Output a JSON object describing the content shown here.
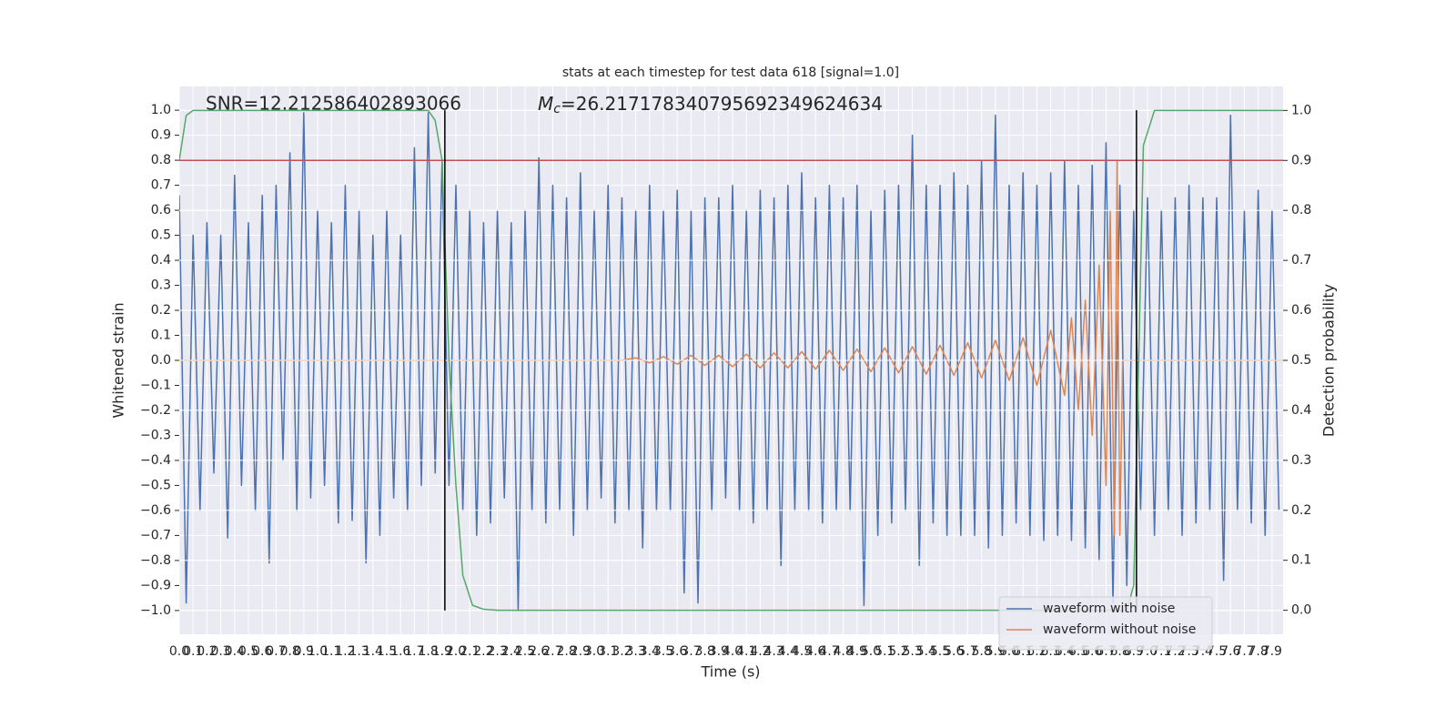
{
  "chart_data": {
    "type": "line",
    "title": "stats at each timestep for test data 618 [signal=1.0]",
    "xlabel": "Time (s)",
    "ylabel": "Whitened strain",
    "y2label": "Detection probability",
    "annotations": {
      "snr": "SNR=12.212586402893066",
      "mc_symbol": "M",
      "mc_sub": "c",
      "mc_value": "=26.217178340795692349624634"
    },
    "xlim": [
      0,
      7.98
    ],
    "ylim": [
      -1.095,
      1.095
    ],
    "y2lim": [
      -0.048,
      1.048
    ],
    "grid": true,
    "legend": "lower right",
    "xticks": [
      {
        "value": 0,
        "label": "0.0"
      },
      0.1,
      0.2,
      0.3,
      0.4,
      0.5,
      0.6,
      0.7,
      0.8,
      0.9,
      {
        "value": 1,
        "label": "1.0"
      },
      1.1,
      1.2,
      1.3,
      1.4,
      1.5,
      1.6,
      1.7,
      1.8,
      1.9,
      {
        "value": 2,
        "label": "2.0"
      },
      2.1,
      2.2,
      2.3,
      2.4,
      2.5,
      2.6,
      2.7,
      2.8,
      2.9,
      {
        "value": 3,
        "label": "3.0"
      },
      3.1,
      3.2,
      3.3,
      3.4,
      3.5,
      3.6,
      3.7,
      3.8,
      3.9,
      {
        "value": 4,
        "label": "4.0"
      },
      4.1,
      4.2,
      4.3,
      4.4,
      4.5,
      4.6,
      4.7,
      4.8,
      4.9,
      {
        "value": 5,
        "label": "5.0"
      },
      5.1,
      5.2,
      5.3,
      5.4,
      5.5,
      5.6,
      5.7,
      5.8,
      5.9,
      {
        "value": 6,
        "label": "6.0"
      },
      6.1,
      6.2,
      6.3,
      6.4,
      6.5,
      6.6,
      6.7,
      6.8,
      6.9,
      {
        "value": 7,
        "label": "7.0"
      },
      7.1,
      7.2,
      7.3,
      7.4,
      7.5,
      7.6,
      7.7,
      7.8,
      7.9
    ],
    "yticks": [
      {
        "value": -1,
        "label": "−1.0"
      },
      {
        "value": -0.9,
        "label": "−0.9"
      },
      {
        "value": -0.8,
        "label": "−0.8"
      },
      {
        "value": -0.7,
        "label": "−0.7"
      },
      {
        "value": -0.6,
        "label": "−0.6"
      },
      {
        "value": -0.5,
        "label": "−0.5"
      },
      {
        "value": -0.4,
        "label": "−0.4"
      },
      {
        "value": -0.3,
        "label": "−0.3"
      },
      {
        "value": -0.2,
        "label": "−0.2"
      },
      {
        "value": -0.1,
        "label": "−0.1"
      },
      {
        "value": 0,
        "label": "0.0"
      },
      0.1,
      0.2,
      0.3,
      0.4,
      0.5,
      0.6,
      0.7,
      0.8,
      0.9,
      {
        "value": 1,
        "label": "1.0"
      }
    ],
    "y2ticks": [
      {
        "value": 0,
        "label": "0.0"
      },
      0.1,
      0.2,
      0.3,
      0.4,
      0.5,
      0.6,
      0.7,
      0.8,
      0.9,
      {
        "value": 1,
        "label": "1.0"
      }
    ],
    "series": [
      {
        "name": "waveform with noise",
        "color": "#4c72b0",
        "x": [
          0,
          0.05,
          0.1,
          0.15,
          0.2,
          0.25,
          0.3,
          0.35,
          0.4,
          0.45,
          0.5,
          0.55,
          0.6,
          0.65,
          0.7,
          0.75,
          0.8,
          0.85,
          0.9,
          0.95,
          1,
          1.05,
          1.1,
          1.15,
          1.2,
          1.25,
          1.3,
          1.35,
          1.4,
          1.45,
          1.5,
          1.55,
          1.6,
          1.65,
          1.7,
          1.75,
          1.8,
          1.85,
          1.9,
          1.95,
          2,
          2.05,
          2.1,
          2.15,
          2.2,
          2.25,
          2.3,
          2.35,
          2.4,
          2.45,
          2.5,
          2.55,
          2.6,
          2.65,
          2.7,
          2.75,
          2.8,
          2.85,
          2.9,
          2.95,
          3,
          3.05,
          3.1,
          3.15,
          3.2,
          3.25,
          3.3,
          3.35,
          3.4,
          3.45,
          3.5,
          3.55,
          3.6,
          3.65,
          3.7,
          3.75,
          3.8,
          3.85,
          3.9,
          3.95,
          4,
          4.05,
          4.1,
          4.15,
          4.2,
          4.25,
          4.3,
          4.35,
          4.4,
          4.45,
          4.5,
          4.55,
          4.6,
          4.65,
          4.7,
          4.75,
          4.8,
          4.85,
          4.9,
          4.95,
          5,
          5.05,
          5.1,
          5.15,
          5.2,
          5.25,
          5.3,
          5.35,
          5.4,
          5.45,
          5.5,
          5.55,
          5.6,
          5.65,
          5.7,
          5.75,
          5.8,
          5.85,
          5.9,
          5.95,
          6,
          6.05,
          6.1,
          6.15,
          6.2,
          6.25,
          6.3,
          6.35,
          6.4,
          6.45,
          6.5,
          6.55,
          6.6,
          6.65,
          6.7,
          6.75,
          6.8,
          6.85,
          6.9,
          6.95,
          7,
          7.05,
          7.1,
          7.15,
          7.2,
          7.25,
          7.3,
          7.35,
          7.4,
          7.45,
          7.5,
          7.55,
          7.6,
          7.65,
          7.7,
          7.75,
          7.8,
          7.85,
          7.9,
          7.95
        ],
        "values": [
          0.66,
          -0.97,
          0.5,
          -0.6,
          0.55,
          -0.45,
          0.5,
          -0.71,
          0.74,
          -0.5,
          0.55,
          -0.6,
          0.66,
          -0.81,
          0.7,
          -0.4,
          0.83,
          -0.6,
          0.99,
          -0.55,
          0.6,
          -0.5,
          0.55,
          -0.65,
          0.7,
          -0.64,
          0.6,
          -0.81,
          0.5,
          -0.7,
          0.6,
          -0.55,
          0.5,
          -0.6,
          0.85,
          -0.5,
          0.99,
          -0.45,
          0.8,
          -0.5,
          0.7,
          -0.6,
          0.6,
          -0.7,
          0.55,
          -0.65,
          0.6,
          -0.55,
          0.55,
          -1.0,
          0.6,
          -0.6,
          0.81,
          -0.65,
          0.7,
          -0.6,
          0.65,
          -0.7,
          0.75,
          -0.6,
          0.6,
          -0.55,
          0.7,
          -0.65,
          0.65,
          -0.6,
          0.6,
          -0.75,
          0.7,
          -0.6,
          0.6,
          -0.6,
          0.68,
          -0.93,
          0.6,
          -0.97,
          0.65,
          -0.6,
          0.65,
          -0.55,
          0.7,
          -0.6,
          0.6,
          -0.65,
          0.68,
          -0.6,
          0.65,
          -0.82,
          0.7,
          -0.6,
          0.75,
          -0.6,
          0.65,
          -0.65,
          0.7,
          -0.6,
          0.65,
          -0.6,
          0.7,
          -0.98,
          0.6,
          -0.7,
          0.68,
          -0.65,
          0.7,
          -0.6,
          0.9,
          -0.82,
          0.7,
          -0.65,
          0.7,
          -0.7,
          0.75,
          -0.7,
          0.7,
          -0.7,
          0.8,
          -0.75,
          0.98,
          -0.7,
          0.7,
          -0.65,
          0.75,
          -0.7,
          0.7,
          -0.72,
          0.75,
          -0.7,
          0.8,
          -0.72,
          0.7,
          -0.75,
          0.78,
          -0.8,
          0.87,
          -0.97,
          0.7,
          -0.9,
          0.6,
          -0.6,
          0.65,
          -0.7,
          0.6,
          -0.6,
          0.65,
          -0.7,
          0.7,
          -0.65,
          0.65,
          -0.6,
          0.65,
          -0.88,
          0.98,
          -0.6,
          0.6,
          -0.65,
          0.68,
          -0.7,
          0.6,
          -0.6
        ]
      },
      {
        "name": "waveform without noise",
        "color": "#dd8452",
        "x": [
          0,
          3.2,
          3.3,
          3.4,
          3.5,
          3.6,
          3.7,
          3.8,
          3.9,
          4.0,
          4.1,
          4.2,
          4.3,
          4.4,
          4.5,
          4.6,
          4.7,
          4.8,
          4.9,
          5.0,
          5.1,
          5.2,
          5.3,
          5.4,
          5.5,
          5.6,
          5.7,
          5.8,
          5.9,
          6.0,
          6.1,
          6.2,
          6.3,
          6.4,
          6.45,
          6.5,
          6.55,
          6.6,
          6.65,
          6.7,
          6.73,
          6.76,
          6.78,
          6.8,
          6.82,
          7.98
        ],
        "values": [
          0,
          0,
          0.01,
          -0.01,
          0.015,
          -0.015,
          0.02,
          -0.02,
          0.02,
          -0.025,
          0.025,
          -0.03,
          0.03,
          -0.03,
          0.035,
          -0.035,
          0.04,
          -0.04,
          0.045,
          -0.045,
          0.05,
          -0.05,
          0.055,
          -0.055,
          0.06,
          -0.06,
          0.07,
          -0.07,
          0.08,
          -0.08,
          0.09,
          -0.1,
          0.12,
          -0.14,
          0.17,
          -0.2,
          0.24,
          -0.3,
          0.38,
          -0.5,
          0.6,
          -0.7,
          0.8,
          -0.7,
          0,
          0
        ]
      },
      {
        "color": "#55a868",
        "axis": "y2",
        "x": [
          0,
          0.05,
          0.1,
          1.8,
          1.85,
          1.9,
          1.95,
          2.0,
          2.05,
          2.12,
          2.2,
          2.3,
          6.85,
          6.9,
          6.97,
          7.05,
          7.98
        ],
        "values": [
          0.9,
          0.99,
          1.0,
          1.0,
          0.98,
          0.9,
          0.5,
          0.25,
          0.07,
          0.01,
          0.002,
          0,
          0,
          0.05,
          0.93,
          1.0,
          1.0
        ]
      }
    ],
    "hlines": [
      {
        "value": 0.9,
        "axis": "y2",
        "color": "#c44e52"
      }
    ],
    "vlines": {
      "x": [
        1.92,
        6.92
      ],
      "ymin": -1.0,
      "ymax": 1.0,
      "color": "#000000"
    }
  }
}
